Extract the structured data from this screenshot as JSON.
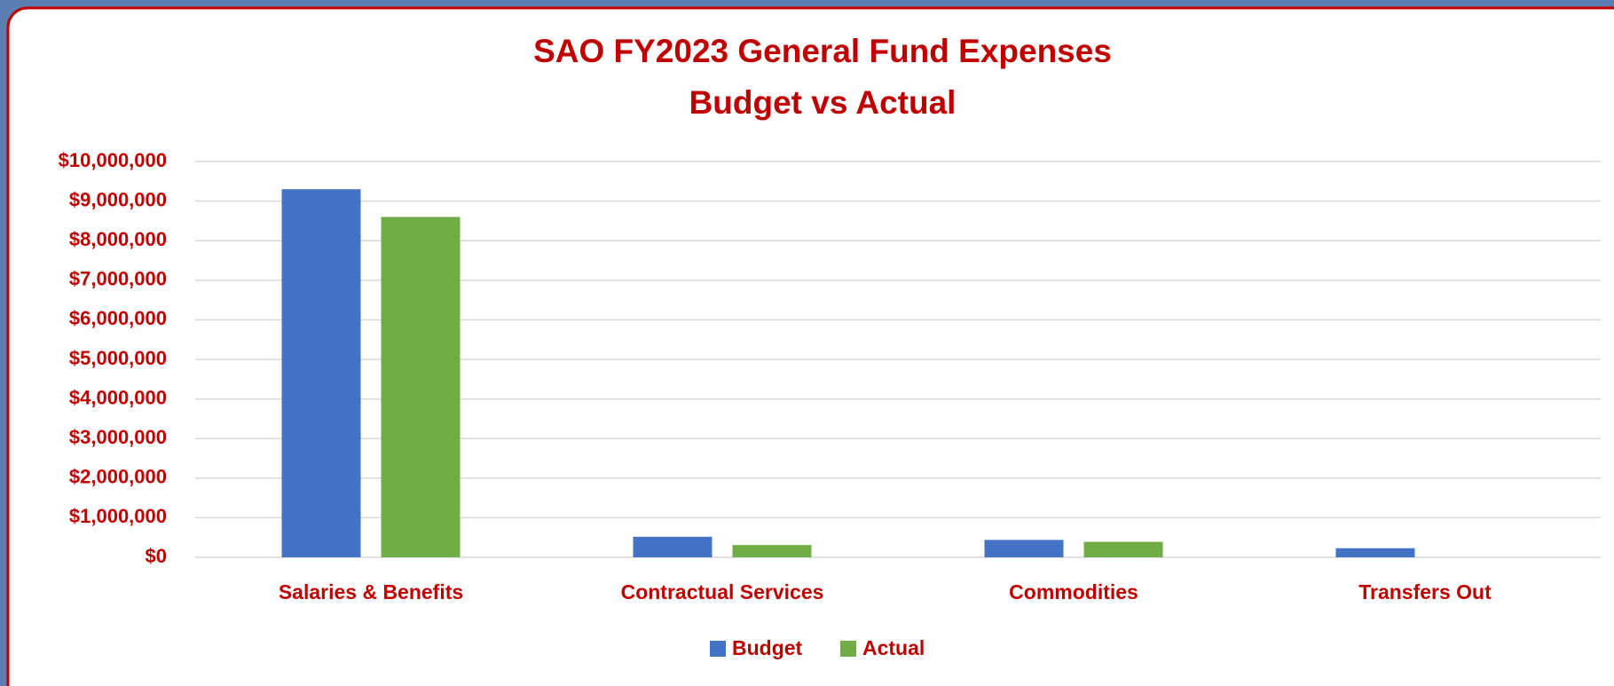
{
  "chart_data": {
    "type": "bar",
    "title": "SAO FY2023 General Fund Expenses",
    "subtitle": "Budget vs Actual",
    "categories": [
      "Salaries & Benefits",
      "Contractual Services",
      "Commodities",
      "Transfers Out"
    ],
    "series": [
      {
        "name": "Budget",
        "color": "#4472c4",
        "values": [
          9300000,
          520000,
          440000,
          230000
        ]
      },
      {
        "name": "Actual",
        "color": "#70ad47",
        "values": [
          8600000,
          310000,
          390000,
          0
        ]
      }
    ],
    "ylim": [
      0,
      10000000
    ],
    "yticks": [
      {
        "value": 0,
        "label": "$0"
      },
      {
        "value": 1000000,
        "label": "$1,000,000"
      },
      {
        "value": 2000000,
        "label": "$2,000,000"
      },
      {
        "value": 3000000,
        "label": "$3,000,000"
      },
      {
        "value": 4000000,
        "label": "$4,000,000"
      },
      {
        "value": 5000000,
        "label": "$5,000,000"
      },
      {
        "value": 6000000,
        "label": "$6,000,000"
      },
      {
        "value": 7000000,
        "label": "$7,000,000"
      },
      {
        "value": 8000000,
        "label": "$8,000,000"
      },
      {
        "value": 9000000,
        "label": "$9,000,000"
      },
      {
        "value": 10000000,
        "label": "$10,000,000"
      }
    ],
    "grid": true,
    "legend": "bottom"
  }
}
